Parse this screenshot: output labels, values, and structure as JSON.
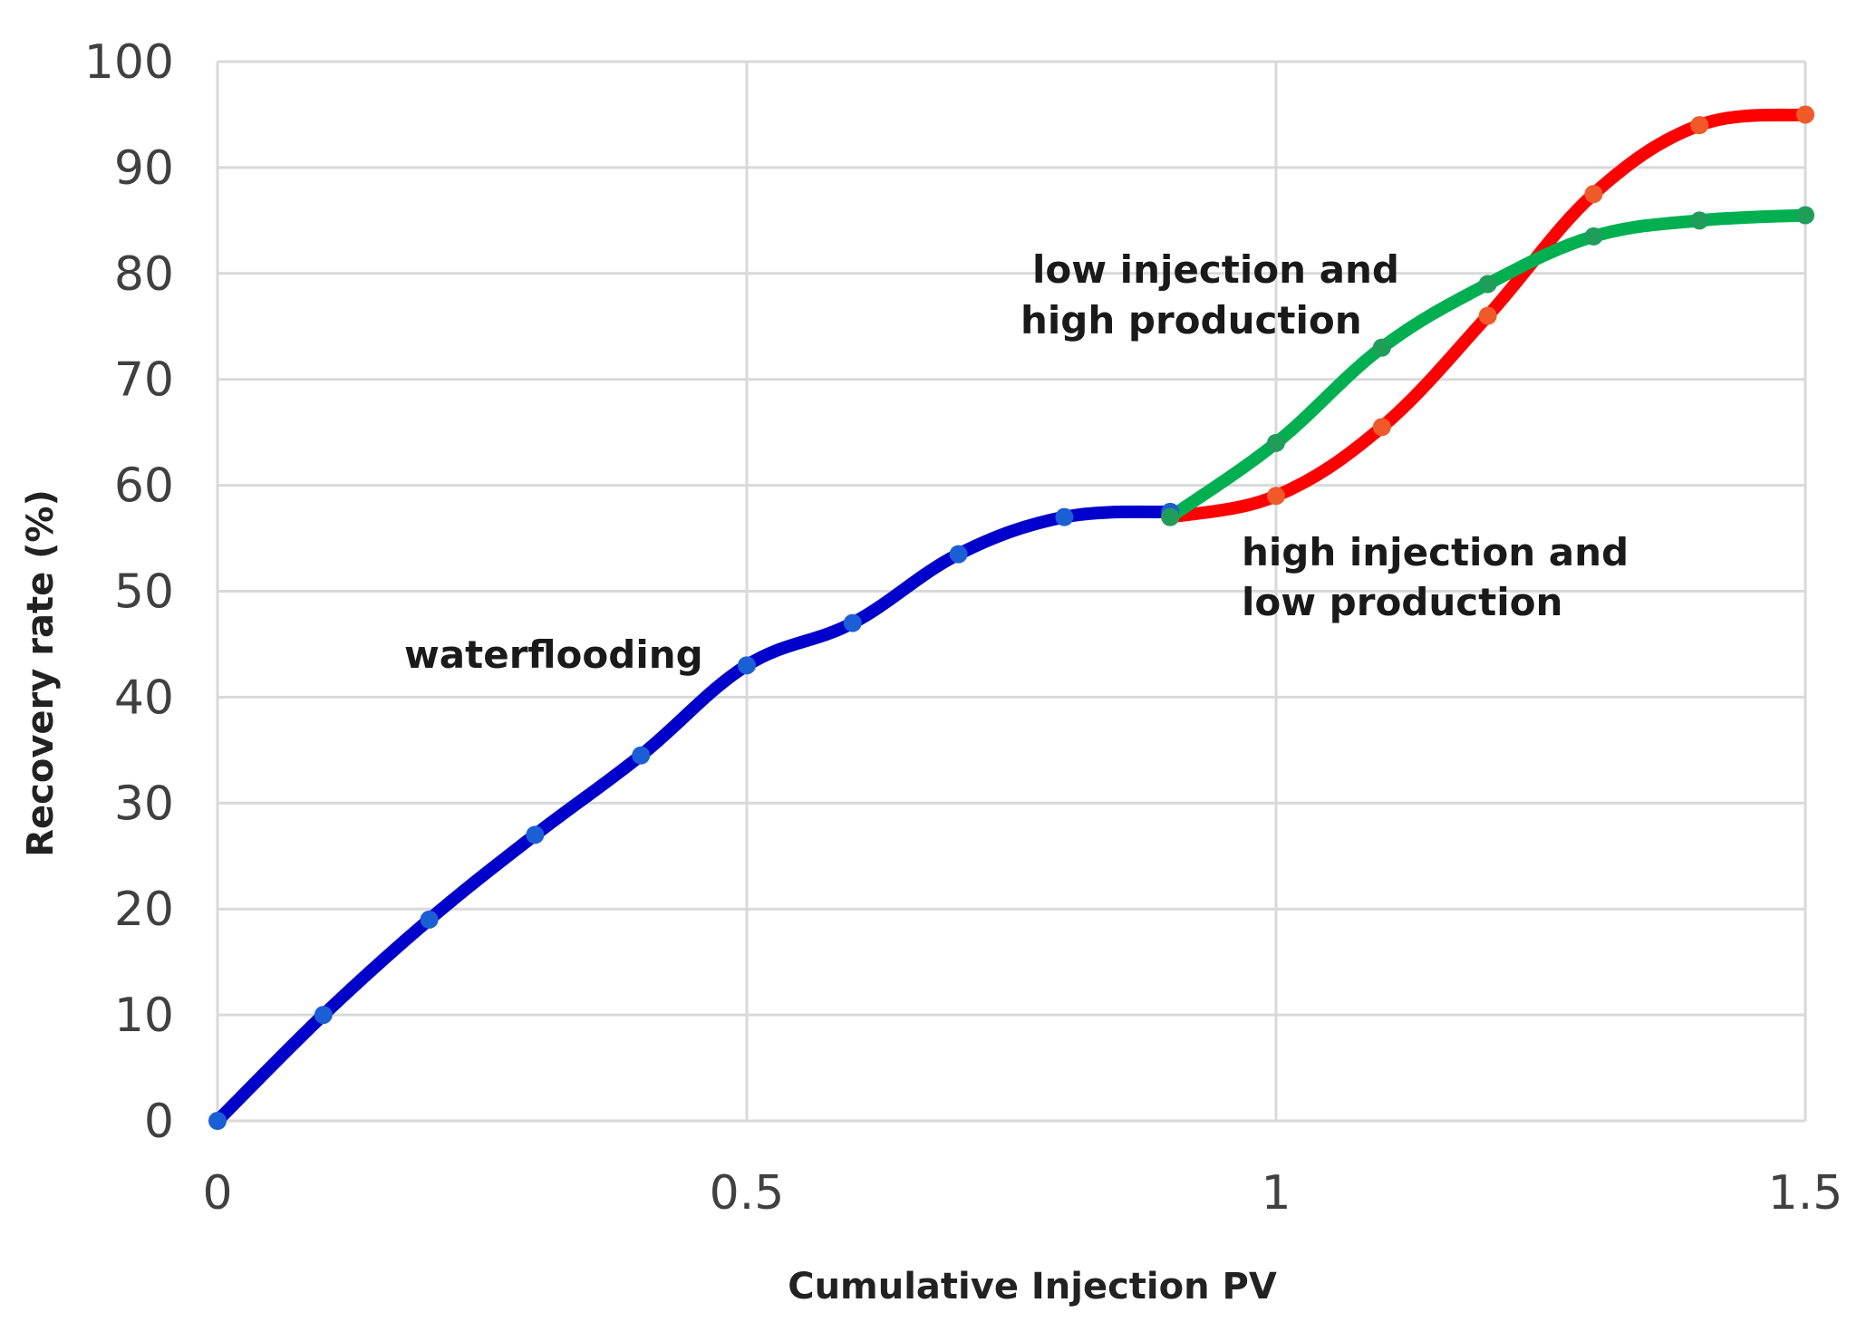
{
  "chart_data": {
    "type": "line",
    "title": "",
    "xlabel": "Cumulative Injection PV",
    "ylabel": "Recovery rate  (%)",
    "xlim": [
      0,
      1.5
    ],
    "ylim": [
      0,
      100
    ],
    "grid": true,
    "x_ticks": [
      {
        "value": 0,
        "label": "0"
      },
      {
        "value": 0.5,
        "label": "0.5"
      },
      {
        "value": 1,
        "label": "1"
      },
      {
        "value": 1.5,
        "label": "1.5"
      }
    ],
    "y_ticks": [
      {
        "value": 0,
        "label": "0"
      },
      {
        "value": 10,
        "label": "10"
      },
      {
        "value": 20,
        "label": "20"
      },
      {
        "value": 30,
        "label": "30"
      },
      {
        "value": 40,
        "label": "40"
      },
      {
        "value": 50,
        "label": "50"
      },
      {
        "value": 60,
        "label": "60"
      },
      {
        "value": 70,
        "label": "70"
      },
      {
        "value": 80,
        "label": "80"
      },
      {
        "value": 90,
        "label": "90"
      },
      {
        "value": 100,
        "label": "100"
      }
    ],
    "series": [
      {
        "name": "waterflooding",
        "color": "#0000cc",
        "marker_color": "#1a5fd6",
        "x": [
          0,
          0.1,
          0.2,
          0.3,
          0.4,
          0.5,
          0.6,
          0.7,
          0.8,
          0.9
        ],
        "y": [
          0,
          10,
          19,
          27,
          34.5,
          43,
          47,
          53.5,
          57,
          57.5
        ]
      },
      {
        "name": "high injection and low production",
        "color": "#ff0000",
        "marker_color": "#f05a28",
        "x": [
          0.9,
          1.0,
          1.1,
          1.2,
          1.3,
          1.4,
          1.5
        ],
        "y": [
          57,
          59,
          65.5,
          76,
          87.5,
          94,
          95
        ]
      },
      {
        "name": "low injection and high production",
        "color": "#00b050",
        "marker_color": "#1f9e5a",
        "x": [
          0.9,
          1.0,
          1.1,
          1.2,
          1.3,
          1.4,
          1.5
        ],
        "y": [
          57,
          64,
          73,
          79,
          83.5,
          85,
          85.5
        ]
      }
    ],
    "annotations": [
      {
        "id": "waterflooding",
        "lines": [
          "waterflooding"
        ]
      },
      {
        "id": "low-injection",
        "lines": [
          "low injection and",
          "high production"
        ]
      },
      {
        "id": "high-injection",
        "lines": [
          "high injection and",
          "low production"
        ]
      }
    ]
  }
}
